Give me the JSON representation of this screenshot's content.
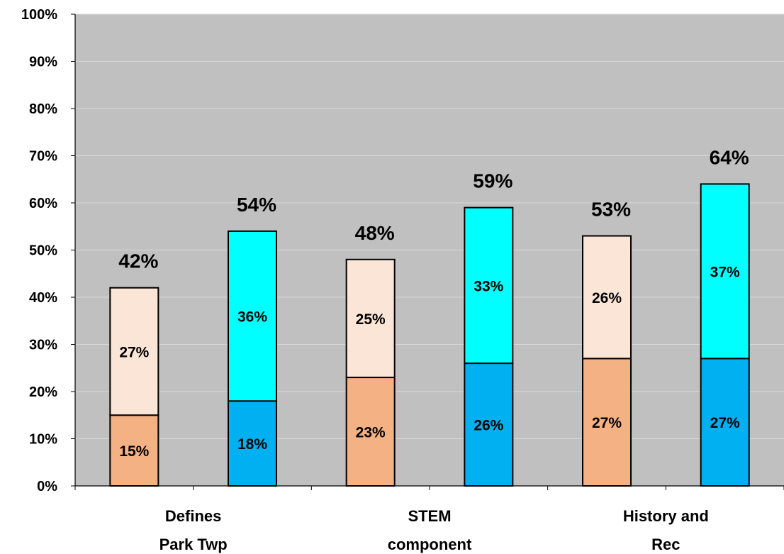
{
  "chart_data": {
    "type": "bar",
    "stacked": true,
    "categories": [
      "",
      "Defines\nPark Twp",
      "",
      "STEM\ncomponent",
      "",
      "History and\nRec"
    ],
    "series": [
      {
        "values": [
          15,
          18,
          23,
          26,
          27,
          27
        ]
      },
      {
        "values": [
          27,
          36,
          25,
          33,
          26,
          37
        ]
      }
    ],
    "totals": [
      42,
      54,
      48,
      59,
      53,
      64
    ],
    "bar_colors": {
      "bottom": [
        "#f4b183",
        "#00b0f0",
        "#f4b183",
        "#00b0f0",
        "#f4b183",
        "#00b0f0"
      ],
      "top": [
        "#fbe5d6",
        "#00ffff",
        "#fbe5d6",
        "#00ffff",
        "#fbe5d6",
        "#00ffff"
      ]
    },
    "plot_background": "#c0c0c0",
    "ylim": [
      0,
      100
    ],
    "yticks": [
      0,
      10,
      20,
      30,
      40,
      50,
      60,
      70,
      80,
      90,
      100
    ],
    "ytick_suffix": "%",
    "grid": true
  }
}
